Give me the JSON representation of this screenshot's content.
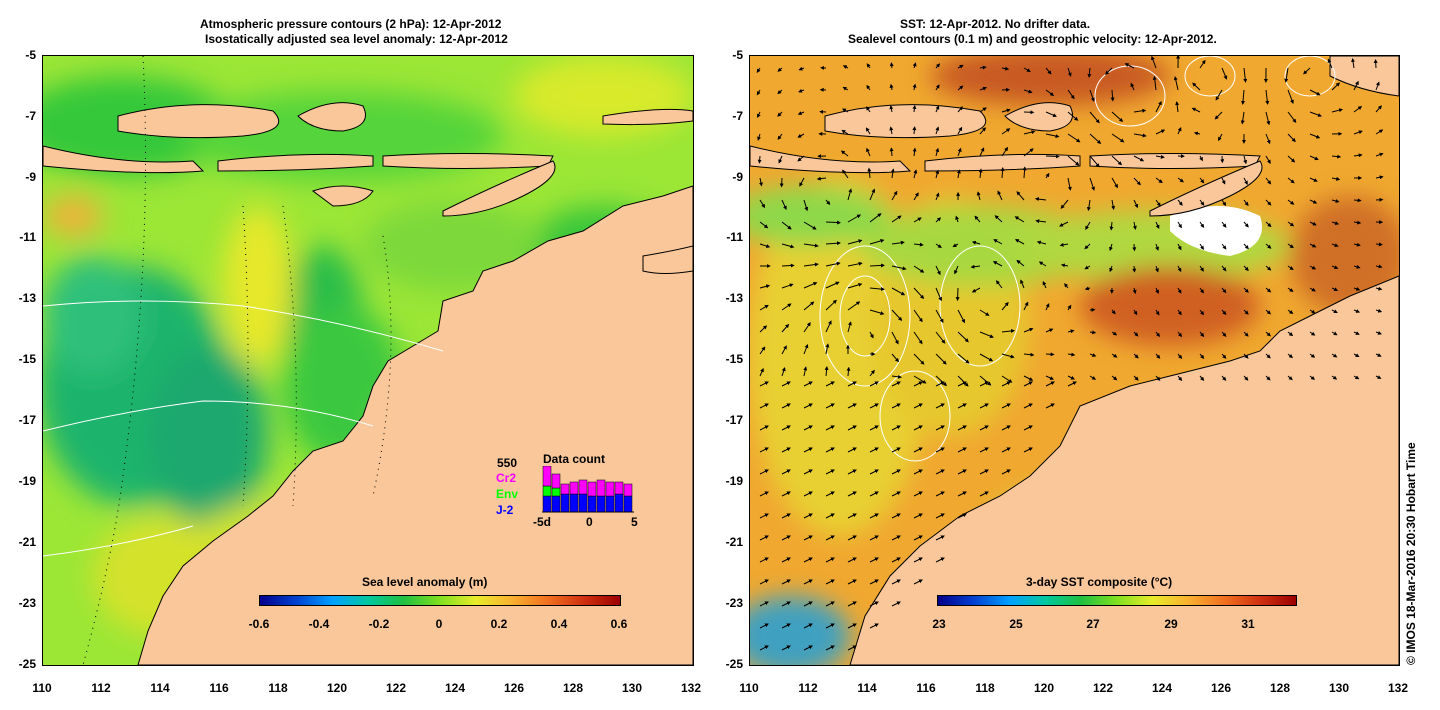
{
  "left_panel": {
    "title_line1": "Atmospheric pressure contours (2 hPa): 12-Apr-2012",
    "title_line2": "Isostatically adjusted sea level anomaly: 12-Apr-2012",
    "colorbar_title": "Sea level anomaly (m)",
    "colorbar_ticks": [
      "-0.6",
      "-0.4",
      "-0.2",
      "0",
      "0.2",
      "0.4",
      "0.6"
    ],
    "data_count": {
      "title": "Data count",
      "max_label": "550",
      "missions": [
        "Cr2",
        "Env",
        "J-2"
      ],
      "mission_colors": [
        "#ff00ff",
        "#00ff00",
        "#0000ff"
      ],
      "axis_labels": [
        "-5d",
        "0",
        "5"
      ]
    }
  },
  "right_panel": {
    "title_line1": "SST: 12-Apr-2012. No drifter data.",
    "title_line2": "Sealevel contours (0.1 m) and geostrophic velocity: 12-Apr-2012.",
    "colorbar_title": "3-day SST composite (°C)",
    "colorbar_ticks": [
      "23",
      "25",
      "27",
      "29",
      "31"
    ]
  },
  "axes": {
    "y_ticks": [
      "-5",
      "-7",
      "-9",
      "-11",
      "-13",
      "-15",
      "-17",
      "-19",
      "-21",
      "-23",
      "-25"
    ],
    "x_ticks": [
      "110",
      "112",
      "114",
      "116",
      "118",
      "120",
      "122",
      "124",
      "126",
      "128",
      "130",
      "132"
    ]
  },
  "credit": "© IMOS 18-Mar-2016 20:30 Hobart Time",
  "colors": {
    "land": "#f9c79a",
    "sla_low": "#00008b",
    "sla_high": "#aa0000"
  }
}
